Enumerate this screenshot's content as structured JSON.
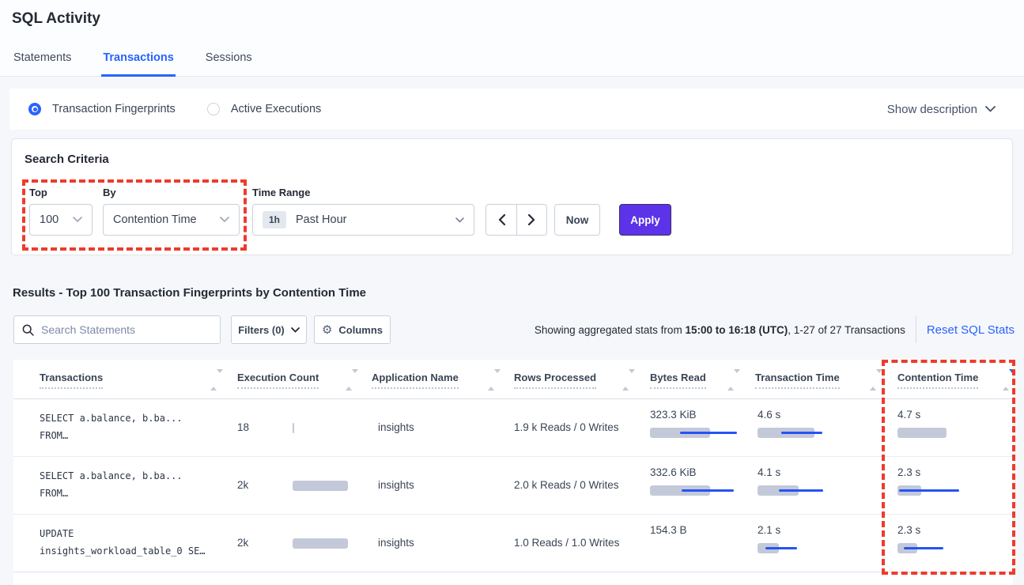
{
  "header": {
    "title": "SQL Activity",
    "tabs": [
      {
        "label": "Statements",
        "active": false
      },
      {
        "label": "Transactions",
        "active": true
      },
      {
        "label": "Sessions",
        "active": false
      }
    ]
  },
  "view_bar": {
    "radios": [
      {
        "label": "Transaction Fingerprints",
        "selected": true
      },
      {
        "label": "Active Executions",
        "selected": false
      }
    ],
    "show_description": "Show description"
  },
  "criteria": {
    "title": "Search Criteria",
    "top_label": "Top",
    "top_value": "100",
    "by_label": "By",
    "by_value": "Contention Time",
    "time_range_label": "Time Range",
    "time_badge": "1h",
    "time_value": "Past Hour",
    "now_button": "Now",
    "apply_button": "Apply"
  },
  "results": {
    "heading": "Results - Top 100 Transaction Fingerprints by Contention Time",
    "search_placeholder": "Search Statements",
    "filters_button": "Filters (0)",
    "columns_button": "Columns",
    "stats_prefix": "Showing aggregated stats from ",
    "stats_bold": "15:00 to 16:18 (UTC)",
    "stats_suffix": ", 1-27 of 27 Transactions",
    "reset_link": "Reset SQL Stats"
  },
  "table": {
    "columns": [
      "Transactions",
      "Execution Count",
      "Application Name",
      "Rows Processed",
      "Bytes Read",
      "Transaction Time",
      "Contention Time"
    ],
    "sort": {
      "column": "Contention Time",
      "direction": "desc"
    },
    "rows": [
      {
        "sql_line1": "SELECT a.balance, b.ba...",
        "sql_line2": "FROM…",
        "execution_count": "18",
        "application_name": "insights",
        "rows_processed": "1.9 k Reads / 0 Writes",
        "bytes_read": "323.3 KiB",
        "transaction_time": "4.6 s",
        "contention_time": "4.7 s",
        "bars": {
          "exec": {
            "g": 2
          },
          "bytes": {
            "g": 76,
            "bs": 38,
            "bw": 72
          },
          "txn": {
            "g": 72,
            "bs": 30,
            "bw": 52
          },
          "cont": {
            "g": 62
          }
        }
      },
      {
        "sql_line1": "SELECT a.balance, b.ba...",
        "sql_line2": "FROM…",
        "execution_count": "2k",
        "application_name": "insights",
        "rows_processed": "2.0 k Reads / 0 Writes",
        "bytes_read": "332.6 KiB",
        "transaction_time": "4.1 s",
        "contention_time": "2.3 s",
        "bars": {
          "exec": {
            "g": 70
          },
          "bytes": {
            "g": 76,
            "bs": 40,
            "bw": 66
          },
          "txn": {
            "g": 52,
            "bs": 27,
            "bw": 56
          },
          "cont": {
            "g": 30,
            "bs": 2,
            "bw": 76
          }
        }
      },
      {
        "sql_line1": "UPDATE",
        "sql_line2": "insights_workload_table_0 SE…",
        "execution_count": "2k",
        "application_name": "insights",
        "rows_processed": "1.0 Reads / 1.0 Writes",
        "bytes_read": "154.3 B",
        "transaction_time": "2.1 s",
        "contention_time": "2.3 s",
        "bars": {
          "exec": {
            "g": 70
          },
          "bytes": null,
          "txn": {
            "g": 27,
            "bs": 10,
            "bw": 40
          },
          "cont": {
            "g": 25,
            "bs": 8,
            "bw": 50
          }
        }
      }
    ]
  },
  "icons": {
    "gear": "⚙"
  },
  "annotations": {
    "color": "#ee3b2c",
    "regions": [
      "top-by-selectors",
      "contention-time-column"
    ]
  }
}
